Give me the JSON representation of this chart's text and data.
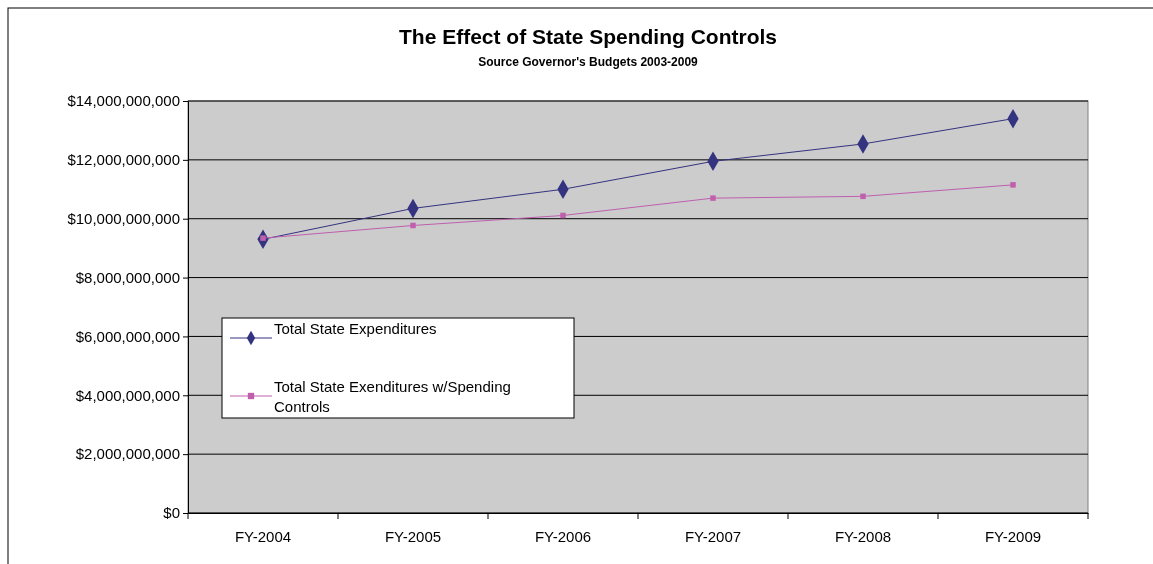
{
  "chart_data": {
    "type": "line",
    "title": "The Effect of State Spending Controls",
    "subtitle": "Source Governor's Budgets 2003-2009",
    "categories": [
      "FY-2004",
      "FY-2005",
      "FY-2006",
      "FY-2007",
      "FY-2008",
      "FY-2009"
    ],
    "series": [
      {
        "name": "Total State Expenditures",
        "color": "#333380",
        "marker": "diamond",
        "values": [
          9300000000,
          10350000000,
          11000000000,
          11950000000,
          12540000000,
          13400000000
        ]
      },
      {
        "name": "Total State Exenditures w/Spending Controls",
        "color": "#bf5fae",
        "marker": "square",
        "values": [
          9340000000,
          9770000000,
          10110000000,
          10700000000,
          10760000000,
          11150000000
        ]
      }
    ],
    "ylim": [
      0,
      14000000000
    ],
    "yticks": [
      {
        "value": 0,
        "label": "$0"
      },
      {
        "value": 2000000000,
        "label": "$2,000,000,000"
      },
      {
        "value": 4000000000,
        "label": "$4,000,000,000"
      },
      {
        "value": 6000000000,
        "label": "$6,000,000,000"
      },
      {
        "value": 8000000000,
        "label": "$8,000,000,000"
      },
      {
        "value": 10000000000,
        "label": "$10,000,000,000"
      },
      {
        "value": 12000000000,
        "label": "$12,000,000,000"
      },
      {
        "value": 14000000000,
        "label": "$14,000,000,000"
      }
    ],
    "grid": "y",
    "legend": "left"
  }
}
